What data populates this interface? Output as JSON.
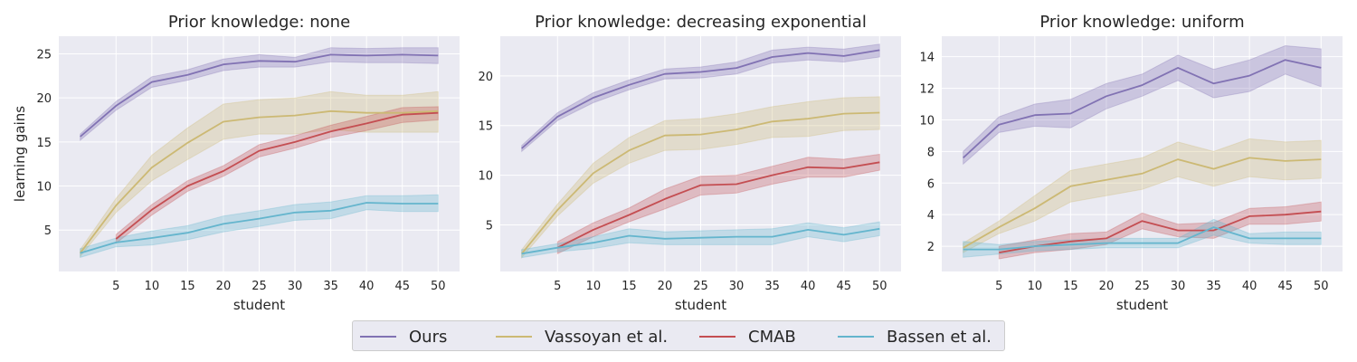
{
  "chart_data": [
    {
      "type": "line",
      "title": "Prior knowledge: none",
      "xlabel": "student",
      "ylabel": "learning gains",
      "xlim": [
        -3,
        53
      ],
      "ylim": [
        0.3,
        27
      ],
      "xticks": [
        5,
        10,
        15,
        20,
        25,
        30,
        35,
        40,
        45,
        50
      ],
      "yticks": [
        5,
        10,
        15,
        20,
        25
      ],
      "series": [
        {
          "name": "Ours",
          "x": [
            0,
            5,
            10,
            15,
            20,
            25,
            30,
            35,
            40,
            45,
            50
          ],
          "values": [
            15.6,
            19.1,
            21.8,
            22.6,
            23.8,
            24.2,
            24.1,
            24.9,
            24.8,
            24.9,
            24.8
          ],
          "lower": [
            15.2,
            18.6,
            21.2,
            22.0,
            23.1,
            23.5,
            23.5,
            24.1,
            24.0,
            24.0,
            23.9
          ],
          "upper": [
            15.9,
            19.6,
            22.4,
            23.2,
            24.4,
            24.9,
            24.6,
            25.7,
            25.6,
            25.7,
            25.7
          ]
        },
        {
          "name": "Vassoyan et al.",
          "x": [
            0,
            5,
            10,
            15,
            20,
            25,
            30,
            35,
            40,
            45,
            50
          ],
          "values": [
            2.4,
            7.8,
            12.1,
            14.9,
            17.3,
            17.8,
            18.0,
            18.5,
            18.3,
            18.3,
            18.5
          ],
          "lower": [
            2.0,
            7.0,
            10.6,
            13.0,
            15.3,
            15.9,
            15.9,
            16.4,
            16.1,
            16.1,
            16.1
          ],
          "upper": [
            2.8,
            8.6,
            13.5,
            16.6,
            19.3,
            19.8,
            20.0,
            20.7,
            20.3,
            20.3,
            20.7
          ]
        },
        {
          "name": "CMAB",
          "x": [
            5,
            10,
            15,
            20,
            25,
            30,
            35,
            40,
            45,
            50
          ],
          "values": [
            4.0,
            7.3,
            10.0,
            11.7,
            14.0,
            15.0,
            16.2,
            17.1,
            18.1,
            18.3
          ],
          "lower": [
            3.5,
            6.7,
            9.4,
            11.1,
            13.3,
            14.3,
            15.5,
            16.3,
            17.2,
            17.5
          ],
          "upper": [
            4.5,
            7.9,
            10.6,
            12.3,
            14.7,
            15.7,
            16.9,
            17.9,
            18.9,
            19.0
          ]
        },
        {
          "name": "Bassen et al.",
          "x": [
            0,
            5,
            10,
            15,
            20,
            25,
            30,
            35,
            40,
            45,
            50
          ],
          "values": [
            2.4,
            3.6,
            4.1,
            4.7,
            5.7,
            6.3,
            7.0,
            7.2,
            8.1,
            8.0,
            8.0
          ],
          "lower": [
            1.9,
            3.1,
            3.3,
            3.9,
            4.8,
            5.4,
            6.1,
            6.3,
            7.3,
            7.1,
            7.1
          ],
          "upper": [
            2.9,
            4.1,
            4.9,
            5.5,
            6.6,
            7.2,
            7.9,
            8.2,
            8.9,
            8.9,
            9.0
          ]
        }
      ]
    },
    {
      "type": "line",
      "title": "Prior knowledge: decreasing exponential",
      "xlabel": "student",
      "ylabel": "",
      "xlim": [
        -3,
        53
      ],
      "ylim": [
        0.3,
        24
      ],
      "xticks": [
        5,
        10,
        15,
        20,
        25,
        30,
        35,
        40,
        45,
        50
      ],
      "yticks": [
        5,
        10,
        15,
        20
      ],
      "series": [
        {
          "name": "Ours",
          "x": [
            0,
            5,
            10,
            15,
            20,
            25,
            30,
            35,
            40,
            45,
            50
          ],
          "values": [
            12.7,
            15.9,
            17.8,
            19.1,
            20.2,
            20.4,
            20.8,
            21.9,
            22.3,
            22.0,
            22.6
          ],
          "lower": [
            12.4,
            15.5,
            17.3,
            18.6,
            19.7,
            19.8,
            20.2,
            21.3,
            21.6,
            21.4,
            21.9
          ],
          "upper": [
            13.0,
            16.3,
            18.3,
            19.6,
            20.7,
            20.9,
            21.4,
            22.6,
            22.9,
            22.7,
            23.2
          ]
        },
        {
          "name": "Vassoyan et al.",
          "x": [
            0,
            5,
            10,
            15,
            20,
            25,
            30,
            35,
            40,
            45,
            50
          ],
          "values": [
            2.1,
            6.5,
            10.2,
            12.5,
            14.0,
            14.1,
            14.6,
            15.4,
            15.7,
            16.2,
            16.3
          ],
          "lower": [
            1.7,
            5.9,
            9.2,
            11.2,
            12.5,
            12.6,
            13.1,
            13.8,
            13.9,
            14.5,
            14.6
          ],
          "upper": [
            2.5,
            7.1,
            11.2,
            13.8,
            15.5,
            15.7,
            16.2,
            16.9,
            17.4,
            17.8,
            17.9
          ]
        },
        {
          "name": "CMAB",
          "x": [
            5,
            10,
            15,
            20,
            25,
            30,
            35,
            40,
            45,
            50
          ],
          "values": [
            2.7,
            4.5,
            6.0,
            7.6,
            9.0,
            9.1,
            10.0,
            10.8,
            10.7,
            11.3
          ],
          "lower": [
            2.1,
            3.8,
            5.3,
            6.6,
            8.0,
            8.2,
            9.1,
            9.8,
            9.8,
            10.5
          ],
          "upper": [
            3.3,
            5.2,
            6.7,
            8.6,
            9.9,
            10.0,
            10.9,
            11.8,
            11.6,
            12.1
          ]
        },
        {
          "name": "Bassen et al.",
          "x": [
            0,
            5,
            10,
            15,
            20,
            25,
            30,
            35,
            40,
            45,
            50
          ],
          "values": [
            2.1,
            2.7,
            3.2,
            3.9,
            3.6,
            3.7,
            3.8,
            3.8,
            4.5,
            4.0,
            4.6
          ],
          "lower": [
            1.7,
            2.3,
            2.6,
            3.2,
            3.0,
            3.0,
            3.0,
            3.0,
            3.8,
            3.3,
            3.9
          ],
          "upper": [
            2.5,
            3.1,
            3.8,
            4.6,
            4.3,
            4.4,
            4.5,
            4.6,
            5.2,
            4.7,
            5.3
          ]
        }
      ]
    },
    {
      "type": "line",
      "title": "Prior knowledge: uniform",
      "xlabel": "student",
      "ylabel": "",
      "xlim": [
        -3,
        53
      ],
      "ylim": [
        0.4,
        15.3
      ],
      "xticks": [
        5,
        10,
        15,
        20,
        25,
        30,
        35,
        40,
        45,
        50
      ],
      "yticks": [
        2,
        4,
        6,
        8,
        10,
        12,
        14
      ],
      "series": [
        {
          "name": "Ours",
          "x": [
            0,
            5,
            10,
            15,
            20,
            25,
            30,
            35,
            40,
            45,
            50
          ],
          "values": [
            7.6,
            9.7,
            10.3,
            10.4,
            11.5,
            12.2,
            13.3,
            12.3,
            12.8,
            13.8,
            13.3
          ],
          "lower": [
            7.2,
            9.2,
            9.6,
            9.5,
            10.7,
            11.5,
            12.5,
            11.4,
            11.8,
            12.9,
            12.1
          ],
          "upper": [
            8.0,
            10.2,
            11.0,
            11.3,
            12.3,
            12.9,
            14.1,
            13.2,
            13.8,
            14.7,
            14.5
          ]
        },
        {
          "name": "Vassoyan et al.",
          "x": [
            0,
            5,
            10,
            15,
            20,
            25,
            30,
            35,
            40,
            45,
            50
          ],
          "values": [
            1.9,
            3.2,
            4.4,
            5.8,
            6.2,
            6.6,
            7.5,
            6.9,
            7.6,
            7.4,
            7.5
          ],
          "lower": [
            1.6,
            2.8,
            3.6,
            4.8,
            5.2,
            5.6,
            6.4,
            5.8,
            6.4,
            6.2,
            6.3
          ],
          "upper": [
            2.2,
            3.6,
            5.2,
            6.8,
            7.2,
            7.6,
            8.6,
            8.0,
            8.8,
            8.6,
            8.7
          ]
        },
        {
          "name": "CMAB",
          "x": [
            5,
            10,
            15,
            20,
            25,
            30,
            35,
            40,
            45,
            50
          ],
          "values": [
            1.6,
            2.0,
            2.3,
            2.5,
            3.6,
            3.0,
            3.0,
            3.9,
            4.0,
            4.2
          ],
          "lower": [
            1.2,
            1.6,
            1.8,
            2.1,
            3.1,
            2.6,
            2.5,
            3.4,
            3.4,
            3.6
          ],
          "upper": [
            2.0,
            2.4,
            2.8,
            2.9,
            4.1,
            3.4,
            3.5,
            4.4,
            4.5,
            4.8
          ]
        },
        {
          "name": "Bassen et al.",
          "x": [
            0,
            5,
            10,
            15,
            20,
            25,
            30,
            35,
            40,
            45,
            50
          ],
          "values": [
            1.8,
            1.8,
            2.0,
            2.1,
            2.2,
            2.2,
            2.2,
            3.2,
            2.5,
            2.5,
            2.5
          ],
          "lower": [
            1.3,
            1.5,
            1.7,
            1.8,
            1.9,
            1.9,
            1.9,
            2.7,
            2.2,
            2.1,
            2.1
          ],
          "upper": [
            2.3,
            2.1,
            2.3,
            2.4,
            2.5,
            2.5,
            2.5,
            3.7,
            2.8,
            2.9,
            2.9
          ]
        }
      ]
    }
  ],
  "colors": {
    "Ours": "#8172b3",
    "Vassoyan et al.": "#ccb974",
    "CMAB": "#c44e52",
    "Bassen et al.": "#64b5cd",
    "axes_bg": "#eaeaf2",
    "grid": "#ffffff"
  },
  "legend": {
    "location": "bottom-center",
    "items": [
      {
        "label": "Ours",
        "color": "#8172b3"
      },
      {
        "label": "Vassoyan et al.",
        "color": "#ccb974"
      },
      {
        "label": "CMAB",
        "color": "#c44e52"
      },
      {
        "label": "Bassen et al.",
        "color": "#64b5cd"
      }
    ]
  }
}
